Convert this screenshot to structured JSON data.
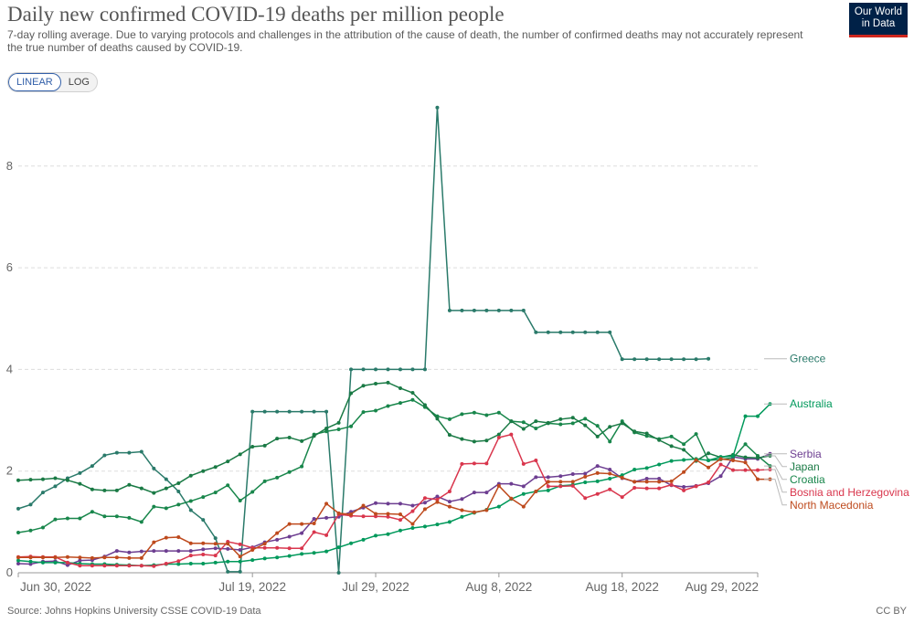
{
  "header": {
    "title": "Daily new confirmed COVID-19 deaths per million people",
    "subtitle": "7-day rolling average. Due to varying protocols and challenges in the attribution of the cause of death, the number of confirmed deaths may not accurately represent the true number of deaths caused by COVID-19.",
    "logo_line1": "Our World",
    "logo_line2": "in Data"
  },
  "controls": {
    "linear_label": "LINEAR",
    "log_label": "LOG",
    "selected": "LINEAR"
  },
  "footer": {
    "source": "Source: Johns Hopkins University CSSE COVID-19 Data",
    "license": "CC BY"
  },
  "chart_data": {
    "type": "line",
    "title": "Daily new confirmed COVID-19 deaths per million people",
    "xlabel": "",
    "ylabel": "",
    "ylim": [
      0,
      9.2
    ],
    "yticks": [
      0,
      2,
      4,
      6,
      8
    ],
    "x_start": "2022-06-30",
    "x_end": "2022-08-29",
    "xticks": [
      {
        "date": "2022-06-30",
        "label": "Jun 30, 2022"
      },
      {
        "date": "2022-07-19",
        "label": "Jul 19, 2022"
      },
      {
        "date": "2022-07-29",
        "label": "Jul 29, 2022"
      },
      {
        "date": "2022-08-08",
        "label": "Aug 8, 2022"
      },
      {
        "date": "2022-08-18",
        "label": "Aug 18, 2022"
      },
      {
        "date": "2022-08-29",
        "label": "Aug 29, 2022"
      }
    ],
    "grid": "horizontal dashed",
    "legend_placement": "right (labels at line ends)",
    "series": [
      {
        "name": "Greece",
        "color": "#2a7a6a",
        "label_color": "#2a7a6a",
        "values": [
          1.26,
          1.34,
          1.58,
          1.7,
          1.86,
          1.96,
          2.1,
          2.31,
          2.36,
          2.36,
          2.38,
          2.05,
          1.84,
          1.6,
          1.23,
          1.04,
          0.68,
          0.02,
          0.02,
          3.17,
          3.17,
          3.17,
          3.17,
          3.17,
          3.17,
          3.17,
          0.0,
          4.0,
          4.0,
          4.0,
          4.0,
          4.0,
          4.0,
          4.0,
          9.15,
          5.16,
          5.16,
          5.16,
          5.16,
          5.16,
          5.16,
          5.16,
          4.73,
          4.73,
          4.73,
          4.73,
          4.73,
          4.73,
          4.73,
          4.2,
          4.2,
          4.2,
          4.2,
          4.2,
          4.2,
          4.2,
          4.21,
          null,
          null,
          null,
          null,
          null
        ]
      },
      {
        "name": "Croatia",
        "color": "#18864b",
        "label_color": "#18864b",
        "values": [
          0.79,
          0.83,
          0.89,
          1.05,
          1.07,
          1.07,
          1.2,
          1.11,
          1.11,
          1.08,
          1.0,
          1.3,
          1.27,
          1.34,
          1.41,
          1.49,
          1.58,
          1.72,
          1.42,
          1.59,
          1.8,
          1.87,
          1.98,
          2.09,
          2.72,
          2.78,
          2.82,
          2.88,
          3.16,
          3.19,
          3.28,
          3.34,
          3.4,
          3.26,
          3.08,
          3.02,
          3.12,
          3.15,
          3.1,
          3.15,
          2.98,
          2.96,
          2.84,
          2.94,
          2.92,
          2.94,
          3.03,
          2.89,
          2.58,
          2.98,
          2.76,
          2.69,
          2.63,
          2.68,
          2.53,
          2.73,
          2.21,
          2.23,
          2.26,
          2.53,
          2.3,
          2.1
        ]
      },
      {
        "name": "Serbia",
        "color": "#6d3e91",
        "label_color": "#6d3e91",
        "values": [
          0.18,
          0.17,
          0.22,
          0.23,
          0.15,
          0.24,
          0.25,
          0.32,
          0.43,
          0.4,
          0.42,
          0.43,
          0.43,
          0.43,
          0.43,
          0.46,
          0.48,
          0.47,
          0.45,
          0.5,
          0.6,
          0.65,
          0.71,
          0.78,
          1.06,
          1.08,
          1.1,
          1.2,
          1.28,
          1.37,
          1.36,
          1.36,
          1.32,
          1.38,
          1.5,
          1.4,
          1.45,
          1.58,
          1.58,
          1.75,
          1.75,
          1.7,
          1.88,
          1.88,
          1.9,
          1.94,
          1.95,
          2.1,
          2.03,
          1.86,
          1.79,
          1.85,
          1.85,
          1.72,
          1.69,
          1.71,
          1.76,
          1.9,
          2.28,
          2.24,
          2.24,
          2.34
        ]
      },
      {
        "name": "Japan",
        "color": "#1a7a45",
        "label_color": "#1a7a45",
        "values": [
          1.82,
          1.83,
          1.84,
          1.86,
          1.82,
          1.75,
          1.64,
          1.62,
          1.62,
          1.73,
          1.66,
          1.57,
          1.66,
          1.76,
          1.91,
          2.0,
          2.08,
          2.19,
          2.33,
          2.48,
          2.5,
          2.64,
          2.66,
          2.59,
          2.69,
          2.84,
          2.95,
          3.53,
          3.68,
          3.72,
          3.74,
          3.63,
          3.54,
          3.3,
          3.03,
          2.71,
          2.63,
          2.58,
          2.6,
          2.72,
          2.98,
          2.83,
          2.98,
          2.95,
          3.02,
          3.05,
          2.9,
          2.68,
          2.87,
          2.94,
          2.78,
          2.74,
          2.61,
          2.49,
          2.42,
          2.2,
          2.35,
          2.27,
          2.32,
          2.27,
          2.26,
          2.3
        ]
      },
      {
        "name": "Australia",
        "color": "#00995b",
        "label_color": "#00995b",
        "values": [
          0.24,
          0.22,
          0.2,
          0.2,
          0.2,
          0.18,
          0.17,
          0.17,
          0.16,
          0.15,
          0.14,
          0.15,
          0.17,
          0.17,
          0.18,
          0.18,
          0.2,
          0.22,
          0.22,
          0.25,
          0.28,
          0.3,
          0.33,
          0.37,
          0.39,
          0.42,
          0.5,
          0.58,
          0.65,
          0.73,
          0.76,
          0.83,
          0.88,
          0.91,
          0.95,
          1.0,
          1.1,
          1.18,
          1.24,
          1.3,
          1.45,
          1.55,
          1.6,
          1.62,
          1.71,
          1.73,
          1.78,
          1.8,
          1.85,
          1.92,
          2.03,
          2.06,
          2.13,
          2.2,
          2.22,
          2.24,
          2.21,
          2.28,
          2.29,
          3.08,
          3.08,
          3.32
        ]
      },
      {
        "name": "Bosnia and Herzegovina",
        "color": "#d9364d",
        "label_color": "#d9364d",
        "values": [
          0.31,
          0.32,
          0.31,
          0.31,
          0.2,
          0.14,
          0.14,
          0.14,
          0.14,
          0.14,
          0.14,
          0.13,
          0.18,
          0.23,
          0.34,
          0.36,
          0.34,
          0.61,
          0.56,
          0.49,
          0.49,
          0.49,
          0.48,
          0.48,
          0.8,
          0.74,
          1.15,
          1.12,
          1.11,
          1.11,
          1.1,
          1.04,
          1.21,
          1.47,
          1.44,
          1.6,
          2.14,
          2.15,
          2.15,
          2.66,
          2.72,
          2.14,
          2.21,
          1.7,
          1.7,
          1.71,
          1.47,
          1.55,
          1.64,
          1.49,
          1.67,
          1.66,
          1.66,
          1.73,
          1.62,
          1.7,
          1.78,
          2.13,
          2.02,
          2.02,
          2.02,
          2.03
        ]
      },
      {
        "name": "North Macedonia",
        "color": "#be4a1d",
        "label_color": "#be4a1d",
        "values": [
          0.3,
          0.3,
          0.3,
          0.3,
          0.31,
          0.3,
          0.29,
          0.3,
          0.3,
          0.29,
          0.29,
          0.6,
          0.69,
          0.7,
          0.58,
          0.58,
          0.57,
          0.57,
          0.32,
          0.45,
          0.57,
          0.78,
          0.96,
          0.96,
          0.97,
          1.36,
          1.17,
          1.15,
          1.32,
          1.16,
          1.16,
          1.15,
          0.96,
          1.25,
          1.39,
          1.3,
          1.23,
          1.19,
          1.23,
          1.71,
          1.46,
          1.3,
          1.6,
          1.79,
          1.79,
          1.79,
          1.89,
          1.96,
          1.95,
          1.87,
          1.79,
          1.79,
          1.79,
          1.8,
          1.98,
          2.22,
          2.07,
          2.24,
          2.21,
          2.17,
          1.84,
          1.84
        ]
      }
    ]
  }
}
